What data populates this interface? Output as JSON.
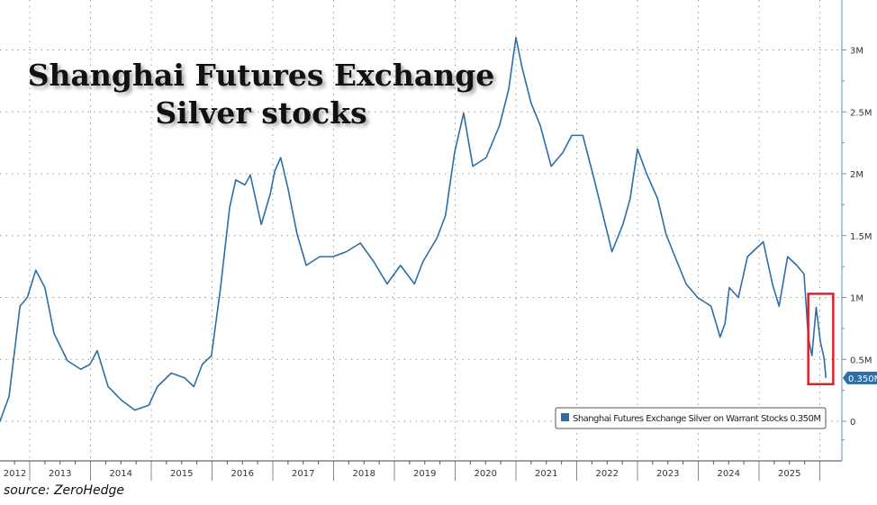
{
  "chart_data": {
    "type": "line",
    "title": [
      "Shanghai Futures Exchange",
      "Silver stocks"
    ],
    "source": "source: ZeroHedge",
    "xlim": [
      2012.5,
      2026.4
    ],
    "ylim": [
      -0.2,
      3.4
    ],
    "x_tick_labels": [
      "2012",
      "2013",
      "2014",
      "2015",
      "2016",
      "2017",
      "2018",
      "2019",
      "2020",
      "2021",
      "2022",
      "2023",
      "2024",
      "2025"
    ],
    "y_ticks": [
      0,
      0.5,
      1,
      1.5,
      2,
      2.5,
      3
    ],
    "y_tick_labels": [
      "0",
      "0.5M",
      "1M",
      "1.5M",
      "2M",
      "2.5M",
      "3M"
    ],
    "y_axis_side": "right",
    "grid": true,
    "legend_position": "bottom-right",
    "last_value_label": "0.350M",
    "series": [
      {
        "name": "Shanghai Futures Exchange Silver on Warrant Stocks 0.350M",
        "color": "#2c6ea5",
        "x": [
          2012.51,
          2012.66,
          2012.84,
          2012.96,
          2013.1,
          2013.25,
          2013.4,
          2013.62,
          2013.84,
          2013.99,
          2014.11,
          2014.29,
          2014.51,
          2014.73,
          2014.96,
          2015.1,
          2015.33,
          2015.55,
          2015.7,
          2015.84,
          2015.99,
          2016.14,
          2016.29,
          2016.39,
          2016.54,
          2016.63,
          2016.81,
          2016.96,
          2017.03,
          2017.13,
          2017.25,
          2017.4,
          2017.55,
          2017.77,
          2017.99,
          2018.21,
          2018.44,
          2018.66,
          2018.88,
          2019.1,
          2019.33,
          2019.47,
          2019.7,
          2019.84,
          2019.99,
          2020.14,
          2020.29,
          2020.51,
          2020.73,
          2020.88,
          2021.0,
          2021.1,
          2021.25,
          2021.4,
          2021.58,
          2021.77,
          2021.92,
          2022.1,
          2022.29,
          2022.47,
          2022.58,
          2022.76,
          2022.88,
          2023.0,
          2023.15,
          2023.33,
          2023.47,
          2023.65,
          2023.8,
          2023.99,
          2024.21,
          2024.36,
          2024.44,
          2024.51,
          2024.66,
          2024.81,
          2024.96,
          2025.07,
          2025.22,
          2025.33,
          2025.47,
          2025.62,
          2025.74,
          2025.81,
          2025.87,
          2025.94,
          2026.01,
          2026.07,
          2026.1
        ],
        "values": [
          0,
          0.2,
          0.93,
          1.0,
          1.22,
          1.08,
          0.71,
          0.49,
          0.42,
          0.46,
          0.57,
          0.28,
          0.17,
          0.09,
          0.13,
          0.28,
          0.39,
          0.35,
          0.28,
          0.46,
          0.53,
          1.08,
          1.73,
          1.95,
          1.91,
          1.99,
          1.59,
          1.84,
          2.02,
          2.13,
          1.88,
          1.51,
          1.26,
          1.33,
          1.33,
          1.37,
          1.44,
          1.29,
          1.11,
          1.26,
          1.11,
          1.29,
          1.48,
          1.66,
          2.17,
          2.49,
          2.06,
          2.13,
          2.39,
          2.68,
          3.1,
          2.86,
          2.57,
          2.39,
          2.06,
          2.17,
          2.31,
          2.31,
          1.95,
          1.59,
          1.37,
          1.59,
          1.8,
          2.2,
          2.0,
          1.8,
          1.51,
          1.29,
          1.11,
          1.0,
          0.93,
          0.68,
          0.79,
          1.08,
          1.0,
          1.33,
          1.4,
          1.45,
          1.11,
          0.93,
          1.33,
          1.26,
          1.19,
          0.68,
          0.53,
          0.92,
          0.64,
          0.51,
          0.35
        ]
      }
    ],
    "highlight_box": {
      "x": [
        2025.81,
        2026.22
      ],
      "y": [
        0.3,
        1.03
      ],
      "color": "#e0202a"
    }
  }
}
